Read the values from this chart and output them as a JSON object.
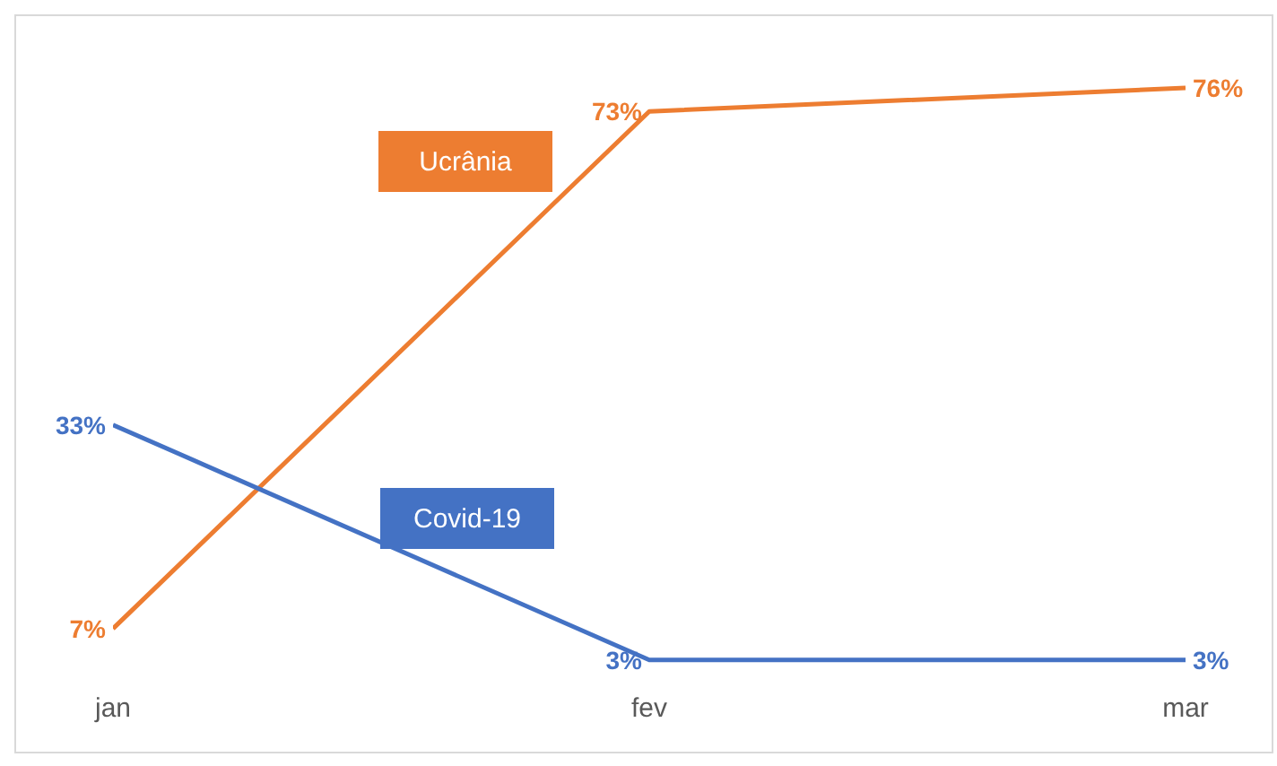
{
  "chart_data": {
    "type": "line",
    "categories": [
      "jan",
      "fev",
      "mar"
    ],
    "series": [
      {
        "name": "Ucrânia",
        "color": "#ed7d31",
        "values": [
          7,
          73,
          76
        ],
        "value_labels": [
          "7%",
          "73%",
          "76%"
        ]
      },
      {
        "name": "Covid-19",
        "color": "#4472c4",
        "values": [
          33,
          3,
          3
        ],
        "value_labels": [
          "33%",
          "3%",
          "3%"
        ]
      }
    ],
    "legend": false,
    "marker": "none",
    "line_style": "solid"
  }
}
